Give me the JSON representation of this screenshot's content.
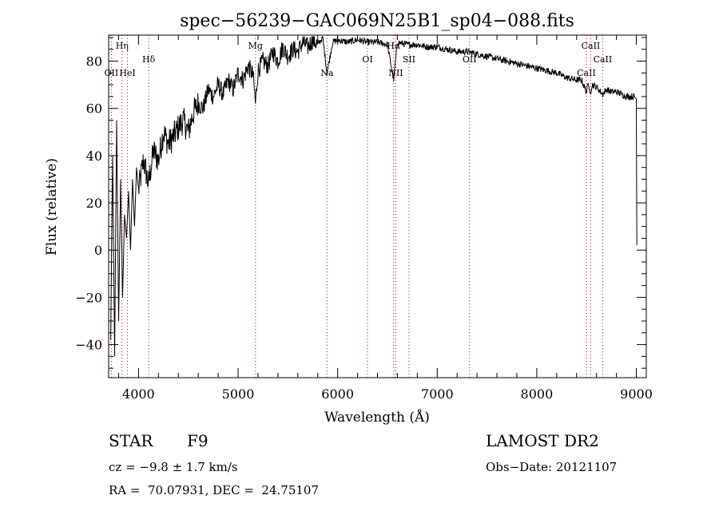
{
  "chart_data": {
    "type": "line",
    "title": "spec−56239−GAC069N25B1_sp04−088.fits",
    "xlabel": "Wavelength (Å)",
    "ylabel": "Flux (relative)",
    "xlim": [
      3700,
      9100
    ],
    "ylim": [
      -54,
      91
    ],
    "xticks": [
      4000,
      5000,
      6000,
      7000,
      8000,
      9000
    ],
    "xtick_labels": [
      "4000",
      "5000",
      "6000",
      "7000",
      "8000",
      "9000"
    ],
    "yticks": [
      -40,
      -20,
      0,
      20,
      40,
      60,
      80
    ],
    "ytick_labels": [
      "−40",
      "−20",
      "0",
      "20",
      "40",
      "60",
      "80"
    ],
    "grid": false,
    "series": [
      {
        "x": [
          3720,
          3740,
          3760,
          3780,
          3800,
          3820,
          3840,
          3860,
          3880,
          3900,
          3920,
          3940,
          3960,
          3980,
          4000,
          4050,
          4100,
          4150,
          4200,
          4250,
          4300,
          4350,
          4400,
          4450,
          4500,
          4550,
          4600,
          4650,
          4700,
          4750,
          4800,
          4850,
          4900,
          4950,
          5000,
          5050,
          5100,
          5150,
          5175,
          5200,
          5250,
          5300,
          5350,
          5400,
          5450,
          5500,
          5550,
          5600,
          5650,
          5700,
          5750,
          5800,
          5850,
          5893,
          5950,
          6000,
          6100,
          6200,
          6300,
          6400,
          6500,
          6563,
          6600,
          6700,
          6800,
          6900,
          7000,
          7100,
          7200,
          7300,
          7400,
          7500,
          7600,
          7700,
          7800,
          7900,
          8000,
          8100,
          8200,
          8300,
          8400,
          8450,
          8498,
          8520,
          8542,
          8560,
          8600,
          8662,
          8700,
          8750,
          8800,
          8850,
          8900,
          8950,
          8980,
          9000,
          9005
        ],
        "y": [
          -38,
          40,
          -45,
          55,
          -30,
          30,
          -20,
          15,
          5,
          25,
          0,
          30,
          10,
          35,
          25,
          38,
          28,
          42,
          38,
          50,
          45,
          48,
          52,
          55,
          50,
          58,
          62,
          60,
          68,
          65,
          70,
          66,
          72,
          68,
          75,
          72,
          78,
          74,
          62,
          76,
          80,
          78,
          84,
          80,
          86,
          82,
          85,
          84,
          88,
          86,
          89,
          87,
          90,
          75,
          88,
          89,
          88,
          89,
          88,
          88,
          87,
          72,
          88,
          87,
          87,
          86,
          86,
          85,
          84,
          84,
          83,
          82,
          81,
          80,
          79,
          78,
          77,
          76,
          75,
          73,
          72,
          72,
          67,
          71,
          66,
          70,
          69,
          66,
          68,
          67,
          67,
          66,
          65,
          65,
          65,
          64,
          2
        ]
      }
    ],
    "line_markers": [
      {
        "name": "OII",
        "wavelength": 3727,
        "label_row": "low"
      },
      {
        "name": "Hη",
        "wavelength": 3835,
        "label_row": "high"
      },
      {
        "name": "HeI",
        "wavelength": 3889,
        "label_row": "low"
      },
      {
        "name": "Hδ",
        "wavelength": 4102,
        "label_row": "mid"
      },
      {
        "name": "Mg",
        "wavelength": 5175,
        "label_row": "high"
      },
      {
        "name": "Na",
        "wavelength": 5893,
        "label_row": "low"
      },
      {
        "name": "OI",
        "wavelength": 6300,
        "label_row": "mid"
      },
      {
        "name": "Hα",
        "wavelength": 6563,
        "label_row": "high"
      },
      {
        "name": "NII",
        "wavelength": 6584,
        "label_row": "low"
      },
      {
        "name": "SII",
        "wavelength": 6717,
        "label_row": "mid"
      },
      {
        "name": "OII",
        "wavelength": 7325,
        "label_row": "mid"
      },
      {
        "name": "CaII",
        "wavelength": 8498,
        "label_row": "low"
      },
      {
        "name": "CaII",
        "wavelength": 8542,
        "label_row": "high"
      },
      {
        "name": "CaII",
        "wavelength": 8662,
        "label_row": "mid"
      }
    ],
    "marker_color": "#cc0000",
    "line_color": "#000000"
  },
  "info": {
    "object_type": "STAR",
    "subclass": "F9",
    "survey": "LAMOST DR2",
    "redshift": "cz = −9.8 ± 1.7 km/s",
    "obs_date": "Obs−Date: 20121107",
    "coords": "RA =  70.07931, DEC =  24.75107"
  }
}
